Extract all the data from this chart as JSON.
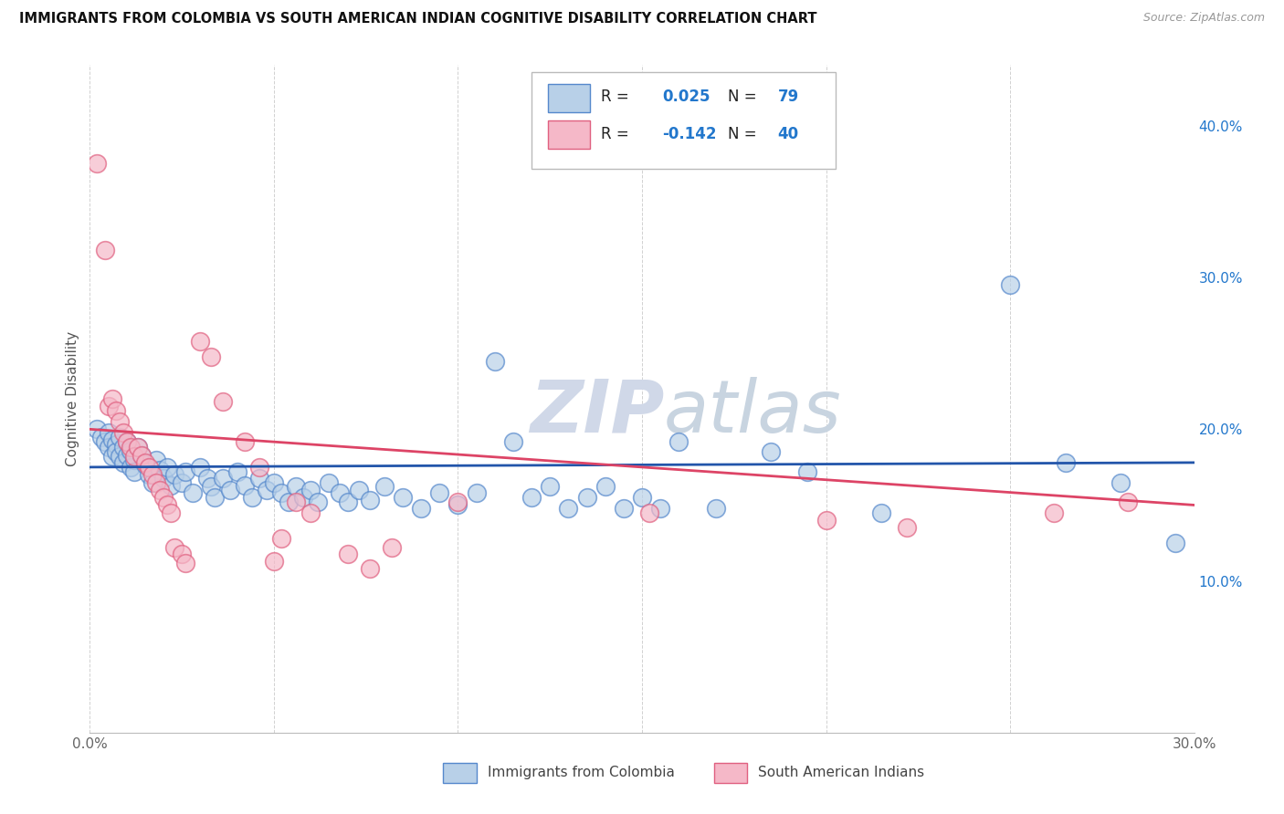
{
  "title": "IMMIGRANTS FROM COLOMBIA VS SOUTH AMERICAN INDIAN COGNITIVE DISABILITY CORRELATION CHART",
  "source": "Source: ZipAtlas.com",
  "ylabel": "Cognitive Disability",
  "xlim": [
    0.0,
    0.3
  ],
  "ylim": [
    0.0,
    0.44
  ],
  "xticks": [
    0.0,
    0.05,
    0.1,
    0.15,
    0.2,
    0.25,
    0.3
  ],
  "yticks_right": [
    0.1,
    0.2,
    0.3,
    0.4
  ],
  "ytick_right_labels": [
    "10.0%",
    "20.0%",
    "30.0%",
    "40.0%"
  ],
  "blue_fill": "#b8d0e8",
  "pink_fill": "#f5b8c8",
  "blue_edge": "#5588cc",
  "pink_edge": "#e06080",
  "blue_line_color": "#2255aa",
  "pink_line_color": "#dd4466",
  "r_value_color": "#2277cc",
  "n_value_color": "#2277cc",
  "watermark_color": "#d0d8e8",
  "blue_trend": [
    0.175,
    0.178
  ],
  "pink_trend_start": 0.2,
  "pink_trend_end": 0.15,
  "blue_points": [
    [
      0.002,
      0.2
    ],
    [
      0.003,
      0.195
    ],
    [
      0.004,
      0.192
    ],
    [
      0.005,
      0.198
    ],
    [
      0.005,
      0.188
    ],
    [
      0.006,
      0.182
    ],
    [
      0.006,
      0.193
    ],
    [
      0.007,
      0.19
    ],
    [
      0.007,
      0.185
    ],
    [
      0.008,
      0.195
    ],
    [
      0.008,
      0.182
    ],
    [
      0.009,
      0.188
    ],
    [
      0.009,
      0.178
    ],
    [
      0.01,
      0.192
    ],
    [
      0.01,
      0.183
    ],
    [
      0.011,
      0.186
    ],
    [
      0.011,
      0.175
    ],
    [
      0.012,
      0.18
    ],
    [
      0.012,
      0.172
    ],
    [
      0.013,
      0.188
    ],
    [
      0.014,
      0.183
    ],
    [
      0.015,
      0.177
    ],
    [
      0.016,
      0.17
    ],
    [
      0.017,
      0.165
    ],
    [
      0.018,
      0.18
    ],
    [
      0.019,
      0.173
    ],
    [
      0.02,
      0.168
    ],
    [
      0.021,
      0.175
    ],
    [
      0.022,
      0.163
    ],
    [
      0.023,
      0.17
    ],
    [
      0.025,
      0.165
    ],
    [
      0.026,
      0.172
    ],
    [
      0.028,
      0.158
    ],
    [
      0.03,
      0.175
    ],
    [
      0.032,
      0.168
    ],
    [
      0.033,
      0.162
    ],
    [
      0.034,
      0.155
    ],
    [
      0.036,
      0.168
    ],
    [
      0.038,
      0.16
    ],
    [
      0.04,
      0.172
    ],
    [
      0.042,
      0.163
    ],
    [
      0.044,
      0.155
    ],
    [
      0.046,
      0.168
    ],
    [
      0.048,
      0.16
    ],
    [
      0.05,
      0.165
    ],
    [
      0.052,
      0.158
    ],
    [
      0.054,
      0.152
    ],
    [
      0.056,
      0.162
    ],
    [
      0.058,
      0.155
    ],
    [
      0.06,
      0.16
    ],
    [
      0.062,
      0.152
    ],
    [
      0.065,
      0.165
    ],
    [
      0.068,
      0.158
    ],
    [
      0.07,
      0.152
    ],
    [
      0.073,
      0.16
    ],
    [
      0.076,
      0.153
    ],
    [
      0.08,
      0.162
    ],
    [
      0.085,
      0.155
    ],
    [
      0.09,
      0.148
    ],
    [
      0.095,
      0.158
    ],
    [
      0.1,
      0.15
    ],
    [
      0.105,
      0.158
    ],
    [
      0.11,
      0.245
    ],
    [
      0.115,
      0.192
    ],
    [
      0.12,
      0.155
    ],
    [
      0.125,
      0.162
    ],
    [
      0.13,
      0.148
    ],
    [
      0.135,
      0.155
    ],
    [
      0.14,
      0.162
    ],
    [
      0.145,
      0.148
    ],
    [
      0.15,
      0.155
    ],
    [
      0.155,
      0.148
    ],
    [
      0.16,
      0.192
    ],
    [
      0.17,
      0.148
    ],
    [
      0.185,
      0.185
    ],
    [
      0.195,
      0.172
    ],
    [
      0.215,
      0.145
    ],
    [
      0.25,
      0.295
    ],
    [
      0.265,
      0.178
    ],
    [
      0.28,
      0.165
    ],
    [
      0.295,
      0.125
    ]
  ],
  "pink_points": [
    [
      0.002,
      0.375
    ],
    [
      0.004,
      0.318
    ],
    [
      0.005,
      0.215
    ],
    [
      0.006,
      0.22
    ],
    [
      0.007,
      0.212
    ],
    [
      0.008,
      0.205
    ],
    [
      0.009,
      0.198
    ],
    [
      0.01,
      0.192
    ],
    [
      0.011,
      0.188
    ],
    [
      0.012,
      0.182
    ],
    [
      0.013,
      0.188
    ],
    [
      0.014,
      0.183
    ],
    [
      0.015,
      0.178
    ],
    [
      0.016,
      0.175
    ],
    [
      0.017,
      0.17
    ],
    [
      0.018,
      0.165
    ],
    [
      0.019,
      0.16
    ],
    [
      0.02,
      0.155
    ],
    [
      0.021,
      0.15
    ],
    [
      0.022,
      0.145
    ],
    [
      0.023,
      0.122
    ],
    [
      0.025,
      0.118
    ],
    [
      0.026,
      0.112
    ],
    [
      0.03,
      0.258
    ],
    [
      0.033,
      0.248
    ],
    [
      0.036,
      0.218
    ],
    [
      0.042,
      0.192
    ],
    [
      0.046,
      0.175
    ],
    [
      0.05,
      0.113
    ],
    [
      0.052,
      0.128
    ],
    [
      0.056,
      0.152
    ],
    [
      0.06,
      0.145
    ],
    [
      0.07,
      0.118
    ],
    [
      0.076,
      0.108
    ],
    [
      0.082,
      0.122
    ],
    [
      0.1,
      0.152
    ],
    [
      0.152,
      0.145
    ],
    [
      0.2,
      0.14
    ],
    [
      0.222,
      0.135
    ],
    [
      0.262,
      0.145
    ],
    [
      0.282,
      0.152
    ]
  ]
}
